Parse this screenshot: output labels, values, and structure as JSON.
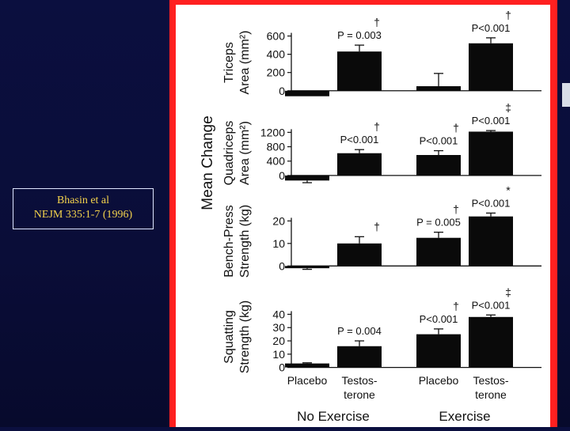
{
  "citation": {
    "line1": "Bhasin et al",
    "line2": "NEJM 335:1-7 (1996)"
  },
  "colors": {
    "background": "#0b0f3f",
    "frame": "#ff2020",
    "citation_text": "#f4d34c",
    "bar": "#0a0a0a"
  },
  "chart_data": {
    "type": "bar",
    "ylabel_shared": "Mean Change",
    "group_labels": [
      "No Exercise",
      "Exercise"
    ],
    "categories": [
      "Placebo",
      "Testos-terone",
      "Placebo",
      "Testos-terone"
    ],
    "category_lines": [
      [
        "Placebo"
      ],
      [
        "Testos-",
        "terone"
      ],
      [
        "Placebo"
      ],
      [
        "Testos-",
        "terone"
      ]
    ],
    "panels": [
      {
        "ylabel_lines": [
          "Triceps",
          "Area (mm²)"
        ],
        "ylim": [
          -80,
          700
        ],
        "ticks": [
          0,
          200,
          400,
          600
        ],
        "tick_labels": [
          "0",
          "200",
          "400",
          "600"
        ],
        "values": [
          -60,
          430,
          50,
          520
        ],
        "errors": [
          0,
          70,
          140,
          60
        ],
        "annotations": [
          {
            "index": 1,
            "symbol": "†",
            "text": "P = 0.003"
          },
          {
            "index": 3,
            "symbol": "†",
            "text": "P<0.001"
          }
        ]
      },
      {
        "ylabel_lines": [
          "Quadriceps",
          "Area (mm²)"
        ],
        "ylim": [
          -200,
          1450
        ],
        "ticks": [
          0,
          400,
          800,
          1200
        ],
        "tick_labels": [
          "0",
          "400",
          "800",
          "1200"
        ],
        "values": [
          -140,
          620,
          570,
          1220
        ],
        "errors": [
          60,
          100,
          120,
          30
        ],
        "annotations": [
          {
            "index": 1,
            "symbol": "†",
            "text": "P<0.001"
          },
          {
            "index": 2,
            "symbol": "†",
            "text": "P<0.001"
          },
          {
            "index": 3,
            "symbol": "‡",
            "text": "P<0.001"
          }
        ]
      },
      {
        "ylabel_lines": [
          "Bench-Press",
          "Strength (kg)"
        ],
        "ylim": [
          -2,
          24
        ],
        "ticks": [
          0,
          10,
          20
        ],
        "tick_labels": [
          "0",
          "10",
          "20"
        ],
        "values": [
          -1,
          10,
          12.5,
          22
        ],
        "errors": [
          0.5,
          3,
          2.5,
          1.5
        ],
        "annotations": [
          {
            "index": 1,
            "symbol": "†",
            "text": ""
          },
          {
            "index": 2,
            "symbol": "†",
            "text": "P = 0.005"
          },
          {
            "index": 3,
            "symbol": "*",
            "text": "P<0.001"
          }
        ]
      },
      {
        "ylabel_lines": [
          "Squatting",
          "Strength (kg)"
        ],
        "ylim": [
          -2,
          48
        ],
        "ticks": [
          0,
          10,
          20,
          30,
          40
        ],
        "tick_labels": [
          "0",
          "10",
          "20",
          "30",
          "40"
        ],
        "values": [
          3,
          16,
          25,
          38
        ],
        "errors": [
          0.5,
          4,
          4,
          1.5
        ],
        "annotations": [
          {
            "index": 1,
            "symbol": "",
            "text": "P = 0.004"
          },
          {
            "index": 2,
            "symbol": "†",
            "text": "P<0.001"
          },
          {
            "index": 3,
            "symbol": "‡",
            "text": "P<0.001"
          }
        ]
      }
    ]
  }
}
